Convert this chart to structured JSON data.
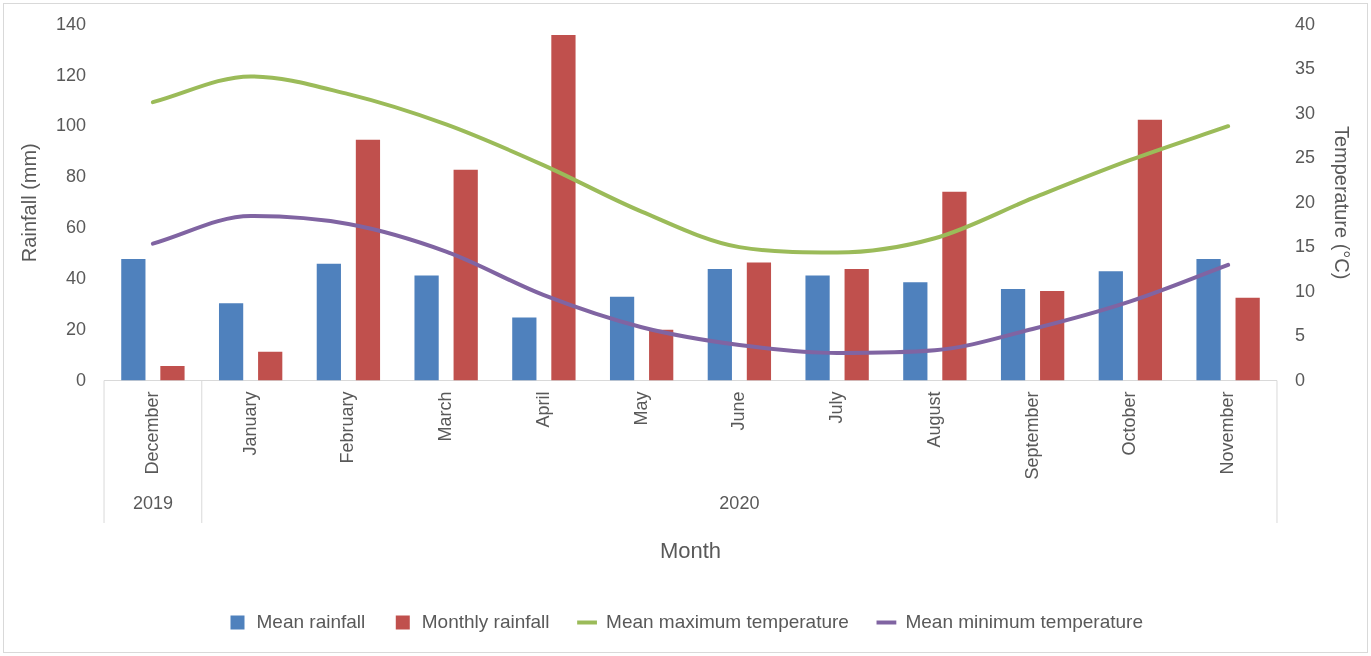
{
  "chart_data": {
    "type": "bar",
    "xlabel": "Month",
    "ylabel": "Rainfall (mm)",
    "y2label": "Temperature (°C)",
    "categories": [
      "December",
      "January",
      "February",
      "March",
      "April",
      "May",
      "June",
      "July",
      "August",
      "September",
      "October",
      "November"
    ],
    "annotations": [
      "2019",
      "2020"
    ],
    "series": [
      {
        "name": "Mean rainfall",
        "color": "#4f81bd",
        "values": [
          47.8,
          30.4,
          46,
          41.3,
          24.8,
          33,
          43.9,
          41.3,
          38.7,
          36,
          43,
          47.8
        ]
      },
      {
        "name": "Monthly rainfall",
        "color": "#c0504d",
        "values": [
          5.7,
          11.3,
          94.8,
          83,
          136,
          20,
          46.5,
          43.9,
          74.3,
          35.2,
          102.6,
          32.6
        ]
      },
      {
        "name": "Mean maximum temperature",
        "type": "line",
        "axis": "y2",
        "color": "#9bbb59",
        "values": [
          31.3,
          34.2,
          32.2,
          28.8,
          24.2,
          19,
          15,
          14.4,
          16,
          20.5,
          24.8,
          28.6
        ]
      },
      {
        "name": "Mean minimum temperature",
        "type": "line",
        "axis": "y2",
        "color": "#8064a2",
        "values": [
          15.4,
          18.5,
          17.6,
          14.5,
          9.6,
          6,
          4,
          3.1,
          3.4,
          5.8,
          8.9,
          13
        ]
      }
    ],
    "ylim": [
      0,
      140
    ],
    "yticks": [
      0,
      20,
      40,
      60,
      80,
      100,
      120,
      140
    ],
    "y2lim": [
      0,
      40
    ],
    "y2ticks": [
      0,
      5,
      10,
      15,
      20,
      25,
      30,
      35,
      40
    ],
    "grid": false,
    "legend": "bottom",
    "marker": "none",
    "line_style": "solid"
  }
}
